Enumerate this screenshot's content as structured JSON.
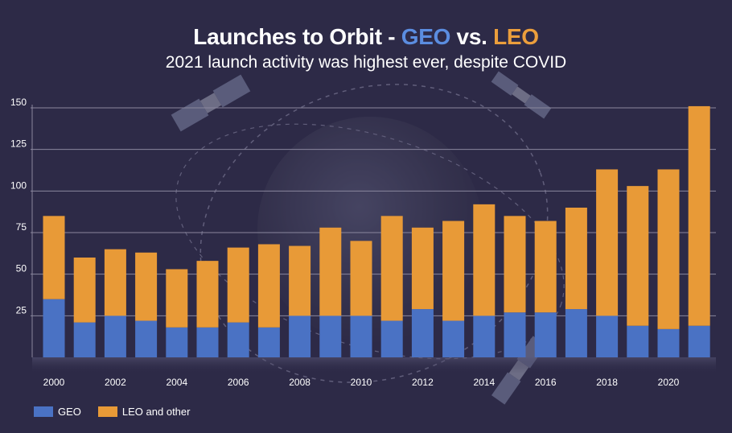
{
  "title": {
    "prefix": "Launches to Orbit - ",
    "geo": "GEO",
    "mid": " vs. ",
    "leo": "LEO"
  },
  "subtitle": "2021 launch activity was highest ever, despite COVID",
  "colors": {
    "background": "#2d2a47",
    "geo": "#4a72c4",
    "leo": "#e89a37",
    "grid": "#8a879e",
    "text": "#ffffff"
  },
  "legend": [
    {
      "label": "GEO",
      "color": "#4a72c4"
    },
    {
      "label": "LEO and other",
      "color": "#e89a37"
    }
  ],
  "chart_data": {
    "type": "bar",
    "stacked": true,
    "title": "Launches to Orbit - GEO vs. LEO",
    "subtitle": "2021 launch activity was highest ever, despite COVID",
    "xlabel": "",
    "ylabel": "",
    "ylim": [
      0,
      150
    ],
    "yticks": [
      25,
      50,
      75,
      100,
      125,
      150
    ],
    "grid": true,
    "legend_position": "bottom-left",
    "categories": [
      2000,
      2001,
      2002,
      2003,
      2004,
      2005,
      2006,
      2007,
      2008,
      2009,
      2010,
      2011,
      2012,
      2013,
      2014,
      2015,
      2016,
      2017,
      2018,
      2019,
      2020,
      2021
    ],
    "xtick_labels": [
      "2000",
      "",
      "2002",
      "",
      "2004",
      "",
      "2006",
      "",
      "2008",
      "",
      "2010",
      "",
      "2012",
      "",
      "2014",
      "",
      "2016",
      "",
      "2018",
      "",
      "2020",
      ""
    ],
    "series": [
      {
        "name": "GEO",
        "values": [
          35,
          21,
          25,
          22,
          18,
          18,
          21,
          18,
          25,
          25,
          25,
          22,
          29,
          22,
          25,
          27,
          27,
          29,
          25,
          19,
          17,
          19
        ]
      },
      {
        "name": "LEO and other",
        "values": [
          50,
          39,
          40,
          41,
          35,
          40,
          45,
          50,
          42,
          53,
          45,
          63,
          49,
          60,
          67,
          58,
          55,
          61,
          88,
          84,
          96,
          132
        ]
      }
    ]
  }
}
